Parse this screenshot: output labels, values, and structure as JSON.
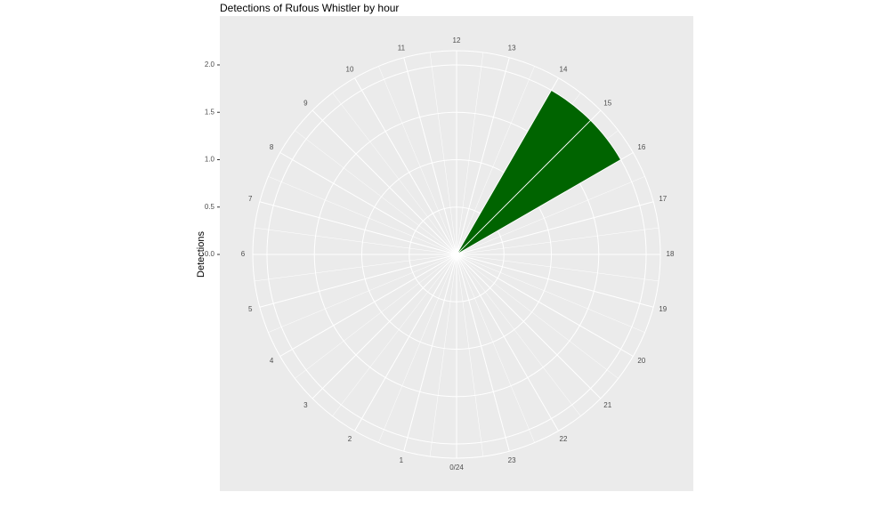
{
  "chart_data": {
    "type": "histogram",
    "title": "Detections of Rufous Whistler by hour",
    "y_label": "Detections",
    "bins": [
      14,
      15,
      16
    ],
    "values": [
      2,
      2
    ],
    "color": "#006400",
    "xlim": [
      0,
      24
    ],
    "xticks": [
      {
        "value": 0,
        "label": "0/24"
      },
      1,
      2,
      3,
      4,
      5,
      6,
      7,
      8,
      9,
      10,
      11,
      12,
      13,
      14,
      15,
      16,
      17,
      18,
      19,
      20,
      21,
      22,
      23
    ],
    "ylim": [
      0,
      2.15
    ],
    "yticks": [
      {
        "value": 0,
        "label": "0.0"
      },
      {
        "value": 0.5,
        "label": "0.5"
      },
      {
        "value": 1,
        "label": "1.0"
      },
      {
        "value": 1.5,
        "label": "1.5"
      },
      {
        "value": 2,
        "label": "2.0"
      }
    ],
    "grid": true
  }
}
